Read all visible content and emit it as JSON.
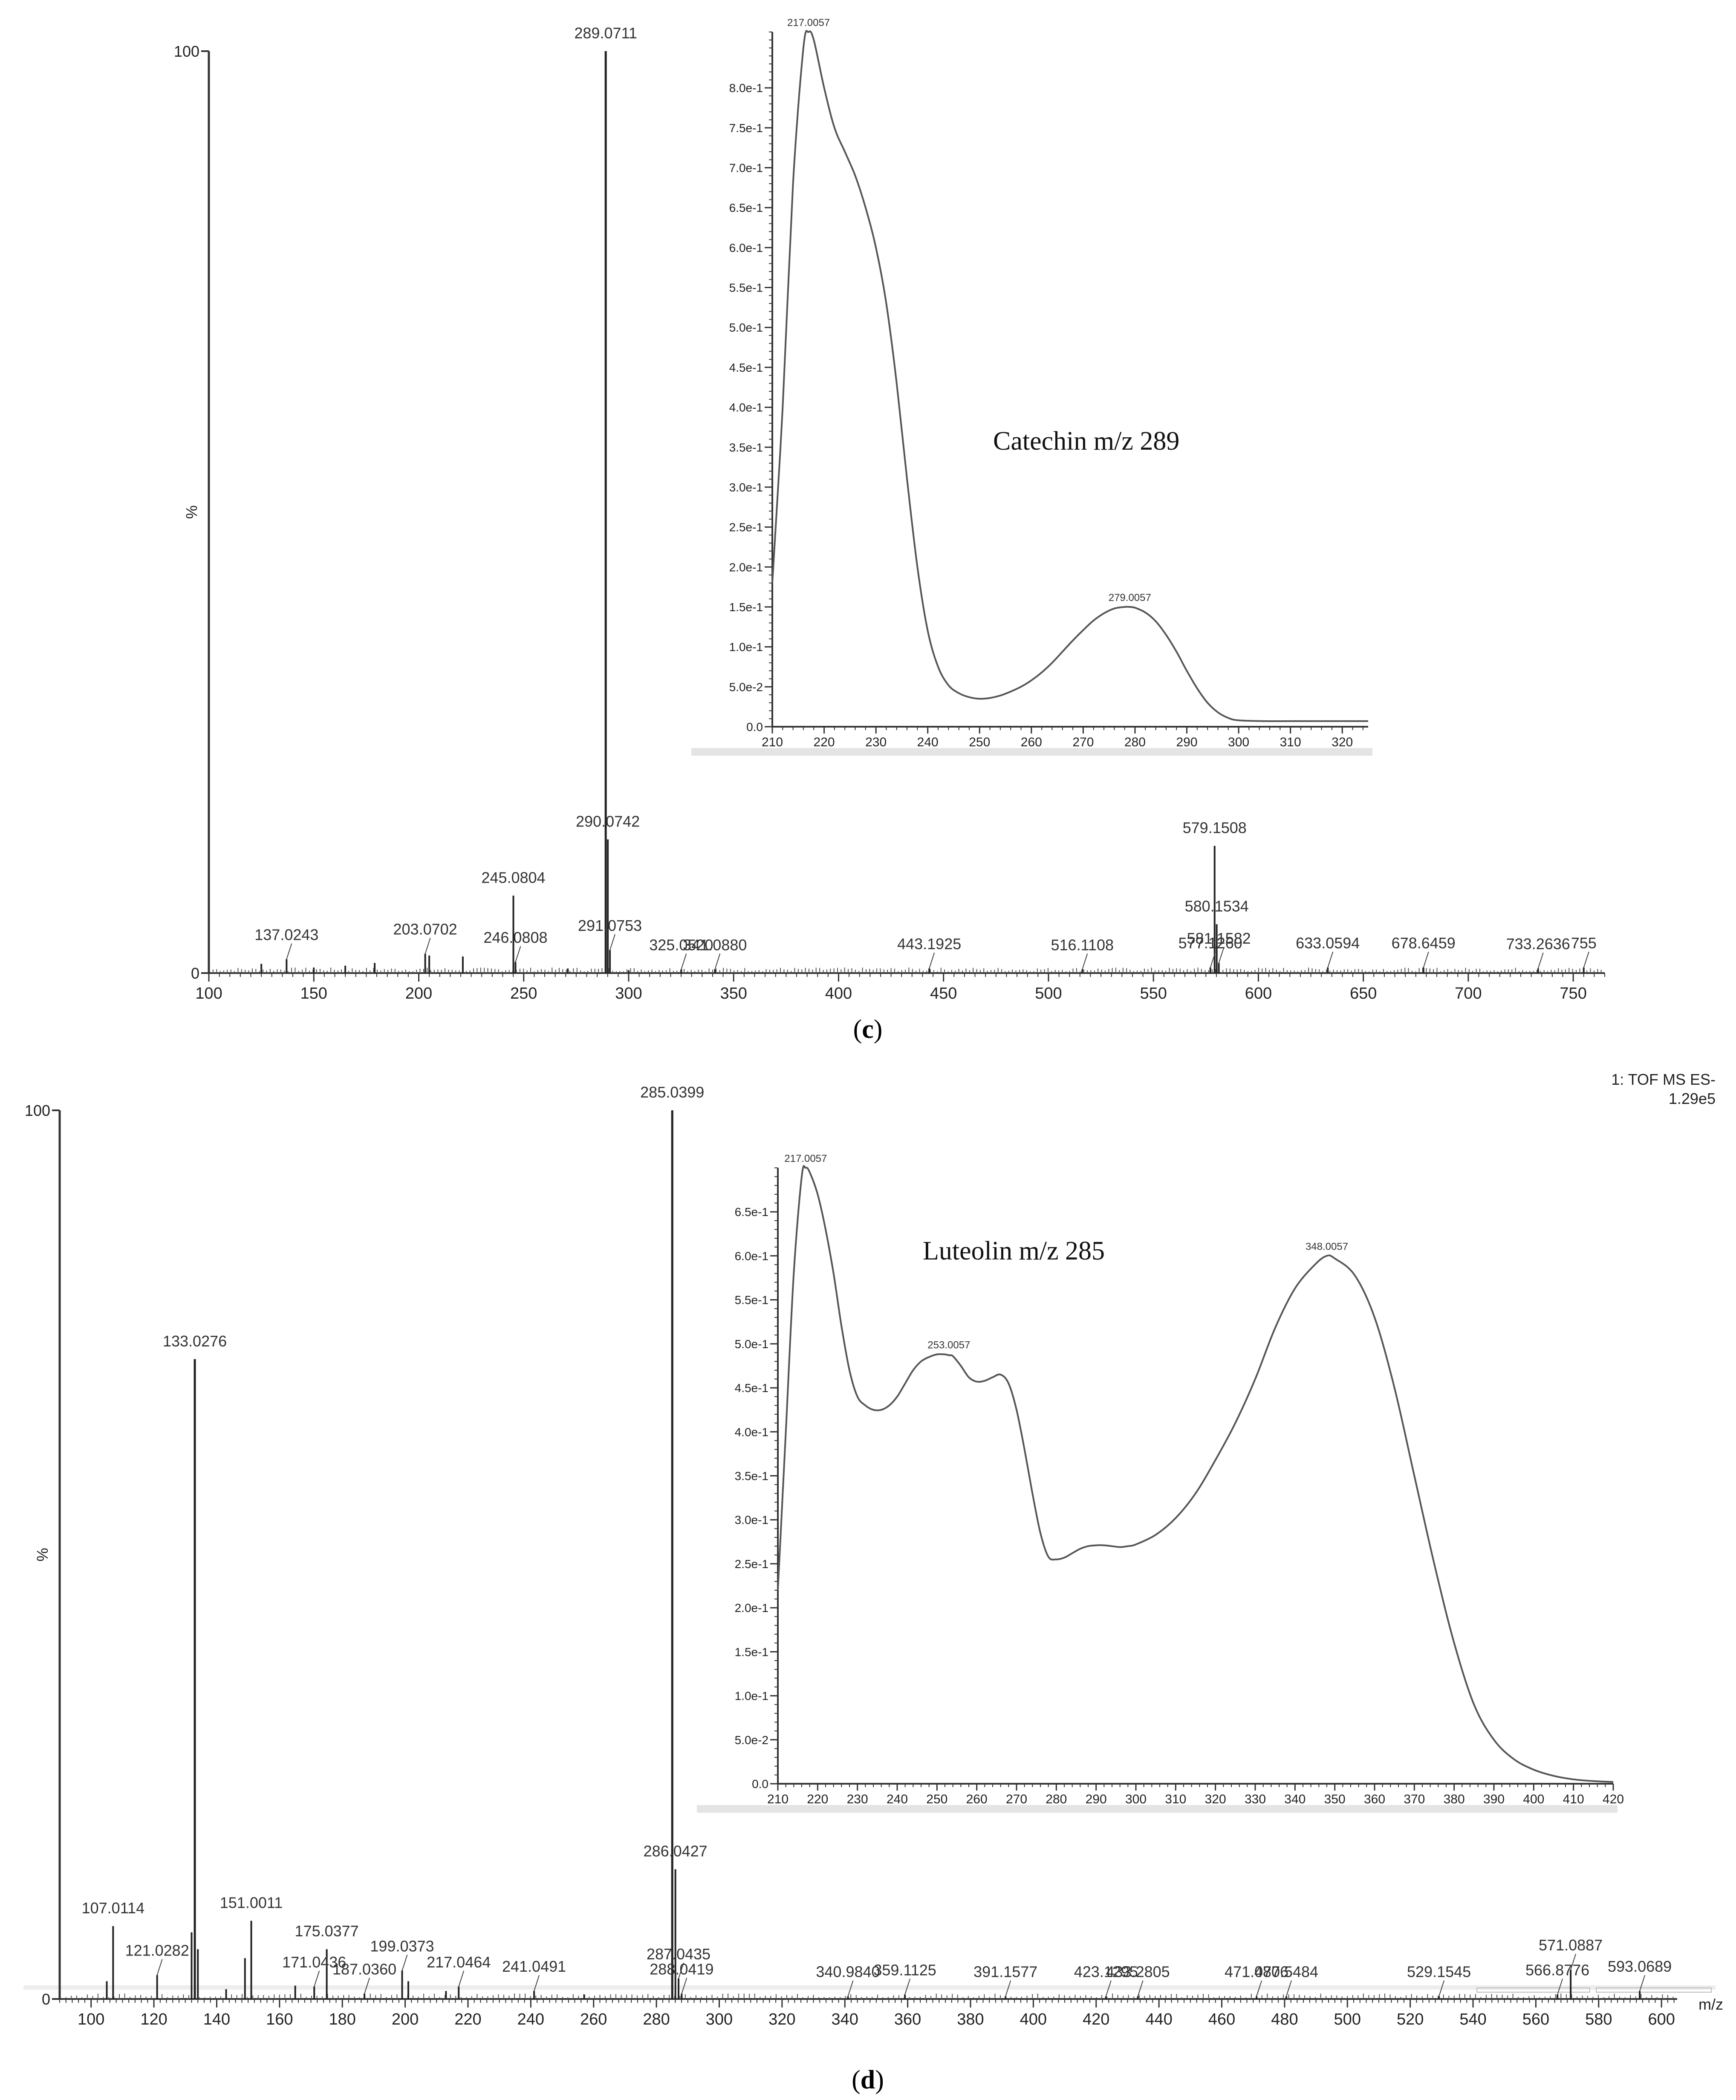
{
  "panels": [
    {
      "label": "c",
      "ms": {
        "type": "bar",
        "ylabel": "%",
        "xlim": [
          100,
          765
        ],
        "ylim": [
          0,
          100
        ],
        "xticks": [
          100,
          150,
          200,
          250,
          300,
          350,
          400,
          450,
          500,
          550,
          600,
          650,
          700,
          750
        ],
        "yticks": [
          0,
          100
        ],
        "peaks": [
          {
            "mz": 289.0711,
            "label": "289.0711",
            "intensity": 100
          },
          {
            "mz": 290.0742,
            "label": "290.0742",
            "intensity": 14.5
          },
          {
            "mz": 579.1508,
            "label": "579.1508",
            "intensity": 13.8
          },
          {
            "mz": 245.0804,
            "label": "245.0804",
            "intensity": 8.4
          },
          {
            "mz": 580.1534,
            "label": "580.1534",
            "intensity": 5.3
          },
          {
            "mz": 291.0753,
            "label": "291.0753",
            "intensity": 2.5
          },
          {
            "mz": 137.0243,
            "label": "137.0243",
            "intensity": 1.5
          },
          {
            "mz": 203.0702,
            "label": "203.0702",
            "intensity": 2.1
          },
          {
            "mz": 246.0808,
            "label": "246.0808",
            "intensity": 1.2
          },
          {
            "mz": 581.1582,
            "label": "581.1582",
            "intensity": 1.1
          },
          {
            "mz": 325.052,
            "label": "325.0520",
            "intensity": 0.4
          },
          {
            "mz": 341.088,
            "label": "341.0880",
            "intensity": 0.4
          },
          {
            "mz": 443.1925,
            "label": "443.1925",
            "intensity": 0.5
          },
          {
            "mz": 516.1108,
            "label": "516.1108",
            "intensity": 0.4
          },
          {
            "mz": 577.126,
            "label": "577.1260",
            "intensity": 0.6
          },
          {
            "mz": 633.0594,
            "label": "633.0594",
            "intensity": 0.6
          },
          {
            "mz": 678.6459,
            "label": "678.6459",
            "intensity": 0.6
          },
          {
            "mz": 733.2636,
            "label": "733.2636",
            "intensity": 0.5
          },
          {
            "mz": 755,
            "label": "755",
            "intensity": 0.6
          },
          {
            "mz": 125,
            "label": "",
            "intensity": 1.0
          },
          {
            "mz": 150,
            "label": "",
            "intensity": 0.6
          },
          {
            "mz": 165,
            "label": "",
            "intensity": 0.8
          },
          {
            "mz": 179,
            "label": "",
            "intensity": 1.1
          },
          {
            "mz": 205,
            "label": "",
            "intensity": 1.9
          },
          {
            "mz": 221,
            "label": "",
            "intensity": 1.8
          },
          {
            "mz": 271,
            "label": "",
            "intensity": 0.5
          },
          {
            "mz": 300,
            "label": "",
            "intensity": 0.3
          }
        ]
      },
      "uv": {
        "type": "line",
        "note": "Catechin m/z 289",
        "xlim": [
          210,
          325
        ],
        "ylim": [
          0,
          0.87
        ],
        "xticks": [
          210,
          220,
          230,
          240,
          250,
          260,
          270,
          280,
          290,
          300,
          310,
          320
        ],
        "yticks": [
          {
            "v": 0.0,
            "label": "0.0"
          },
          {
            "v": 0.05,
            "label": "5.0e-2"
          },
          {
            "v": 0.1,
            "label": "1.0e-1"
          },
          {
            "v": 0.15,
            "label": "1.5e-1"
          },
          {
            "v": 0.2,
            "label": "2.0e-1"
          },
          {
            "v": 0.25,
            "label": "2.5e-1"
          },
          {
            "v": 0.3,
            "label": "3.0e-1"
          },
          {
            "v": 0.35,
            "label": "3.5e-1"
          },
          {
            "v": 0.4,
            "label": "4.0e-1"
          },
          {
            "v": 0.45,
            "label": "4.5e-1"
          },
          {
            "v": 0.5,
            "label": "5.0e-1"
          },
          {
            "v": 0.55,
            "label": "5.5e-1"
          },
          {
            "v": 0.6,
            "label": "6.0e-1"
          },
          {
            "v": 0.65,
            "label": "6.5e-1"
          },
          {
            "v": 0.7,
            "label": "7.0e-1"
          },
          {
            "v": 0.75,
            "label": "7.5e-1"
          },
          {
            "v": 0.8,
            "label": "8.0e-1"
          }
        ],
        "x": [
          210,
          212,
          214,
          216,
          217,
          218,
          220,
          222,
          224,
          226,
          228,
          230,
          232,
          234,
          236,
          238,
          240,
          242,
          244,
          246,
          248,
          250,
          252,
          254,
          256,
          258,
          260,
          262,
          264,
          266,
          268,
          270,
          272,
          274,
          276,
          278,
          279,
          280,
          282,
          284,
          286,
          288,
          290,
          292,
          294,
          296,
          298,
          300,
          305,
          310,
          315,
          320,
          325
        ],
        "y": [
          0.18,
          0.4,
          0.68,
          0.85,
          0.87,
          0.86,
          0.8,
          0.75,
          0.72,
          0.69,
          0.65,
          0.6,
          0.53,
          0.43,
          0.31,
          0.2,
          0.12,
          0.075,
          0.052,
          0.042,
          0.037,
          0.035,
          0.036,
          0.039,
          0.044,
          0.05,
          0.058,
          0.068,
          0.08,
          0.094,
          0.108,
          0.121,
          0.133,
          0.142,
          0.148,
          0.15,
          0.15,
          0.149,
          0.143,
          0.132,
          0.115,
          0.094,
          0.07,
          0.048,
          0.03,
          0.018,
          0.011,
          0.008,
          0.007,
          0.007,
          0.007,
          0.007,
          0.007
        ],
        "annotations": [
          {
            "x": 217,
            "y": 0.87,
            "label": "217.0057"
          },
          {
            "x": 279,
            "y": 0.15,
            "label": "279.0057"
          }
        ]
      }
    },
    {
      "label": "d",
      "header": {
        "line1": "1: TOF MS ES-",
        "line2": "1.29e5"
      },
      "ms": {
        "type": "bar",
        "ylabel": "%",
        "xlabel": "m/z",
        "xlim": [
          90,
          605
        ],
        "ylim": [
          0,
          100
        ],
        "xticks": [
          100,
          120,
          140,
          160,
          180,
          200,
          220,
          240,
          260,
          280,
          300,
          320,
          340,
          360,
          380,
          400,
          420,
          440,
          460,
          480,
          500,
          520,
          540,
          560,
          580,
          600
        ],
        "yticks": [
          0,
          100
        ],
        "peaks": [
          {
            "mz": 285.0399,
            "label": "285.0399",
            "intensity": 100
          },
          {
            "mz": 133.0276,
            "label": "133.0276",
            "intensity": 72
          },
          {
            "mz": 286.0427,
            "label": "286.0427",
            "intensity": 14.6
          },
          {
            "mz": 151.0011,
            "label": "151.0011",
            "intensity": 8.8
          },
          {
            "mz": 107.0114,
            "label": "107.0114",
            "intensity": 8.2
          },
          {
            "mz": 175.0377,
            "label": "175.0377",
            "intensity": 5.6
          },
          {
            "mz": 571.0887,
            "label": "571.0887",
            "intensity": 3.3
          },
          {
            "mz": 199.0373,
            "label": "199.0373",
            "intensity": 3.2
          },
          {
            "mz": 121.0282,
            "label": "121.0282",
            "intensity": 2.7
          },
          {
            "mz": 171.0436,
            "label": "171.0436",
            "intensity": 1.4
          },
          {
            "mz": 287.0435,
            "label": "287.0435",
            "intensity": 2.3
          },
          {
            "mz": 217.0464,
            "label": "217.0464",
            "intensity": 1.4
          },
          {
            "mz": 241.0491,
            "label": "241.0491",
            "intensity": 0.9
          },
          {
            "mz": 187.036,
            "label": "187.0360",
            "intensity": 0.6
          },
          {
            "mz": 288.0419,
            "label": "288.0419",
            "intensity": 0.6
          },
          {
            "mz": 593.0689,
            "label": "593.0689",
            "intensity": 0.9
          },
          {
            "mz": 340.984,
            "label": "340.9840",
            "intensity": 0.3
          },
          {
            "mz": 359.1125,
            "label": "359.1125",
            "intensity": 0.5
          },
          {
            "mz": 391.1577,
            "label": "391.1577",
            "intensity": 0.3
          },
          {
            "mz": 423.1295,
            "label": "423.1295",
            "intensity": 0.3
          },
          {
            "mz": 433.2805,
            "label": "433.2805",
            "intensity": 0.3
          },
          {
            "mz": 471.0776,
            "label": "471.0776",
            "intensity": 0.3
          },
          {
            "mz": 480.5484,
            "label": "480.5484",
            "intensity": 0.3
          },
          {
            "mz": 529.1545,
            "label": "529.1545",
            "intensity": 0.3
          },
          {
            "mz": 566.8776,
            "label": "566.8776",
            "intensity": 0.5
          },
          {
            "mz": 105,
            "label": "",
            "intensity": 2.0
          },
          {
            "mz": 132,
            "label": "",
            "intensity": 7.5
          },
          {
            "mz": 134,
            "label": "",
            "intensity": 5.6
          },
          {
            "mz": 149,
            "label": "",
            "intensity": 4.6
          },
          {
            "mz": 143,
            "label": "",
            "intensity": 1.1
          },
          {
            "mz": 165,
            "label": "",
            "intensity": 1.5
          },
          {
            "mz": 201,
            "label": "",
            "intensity": 2.0
          },
          {
            "mz": 213,
            "label": "",
            "intensity": 0.9
          },
          {
            "mz": 257,
            "label": "",
            "intensity": 0.5
          }
        ]
      },
      "uv": {
        "type": "line",
        "note": "Luteolin m/z 285",
        "xlim": [
          210,
          420
        ],
        "ylim": [
          0,
          0.7
        ],
        "xticks": [
          210,
          220,
          230,
          240,
          250,
          260,
          270,
          280,
          290,
          300,
          310,
          320,
          330,
          340,
          350,
          360,
          370,
          380,
          390,
          400,
          410,
          420
        ],
        "yticks": [
          {
            "v": 0.0,
            "label": "0.0"
          },
          {
            "v": 0.05,
            "label": "5.0e-2"
          },
          {
            "v": 0.1,
            "label": "1.0e-1"
          },
          {
            "v": 0.15,
            "label": "1.5e-1"
          },
          {
            "v": 0.2,
            "label": "2.0e-1"
          },
          {
            "v": 0.25,
            "label": "2.5e-1"
          },
          {
            "v": 0.3,
            "label": "3.0e-1"
          },
          {
            "v": 0.35,
            "label": "3.5e-1"
          },
          {
            "v": 0.4,
            "label": "4.0e-1"
          },
          {
            "v": 0.45,
            "label": "4.5e-1"
          },
          {
            "v": 0.5,
            "label": "5.0e-1"
          },
          {
            "v": 0.55,
            "label": "5.5e-1"
          },
          {
            "v": 0.6,
            "label": "6.0e-1"
          },
          {
            "v": 0.65,
            "label": "6.5e-1"
          }
        ],
        "x": [
          210,
          212,
          214,
          216,
          217,
          218,
          220,
          222,
          224,
          226,
          228,
          230,
          232,
          234,
          236,
          238,
          240,
          242,
          244,
          246,
          248,
          250,
          252,
          253,
          254,
          256,
          258,
          260,
          262,
          264,
          266,
          268,
          270,
          272,
          274,
          276,
          278,
          280,
          282,
          284,
          286,
          288,
          290,
          292,
          294,
          296,
          298,
          300,
          305,
          310,
          315,
          320,
          325,
          330,
          335,
          340,
          345,
          348,
          350,
          355,
          360,
          365,
          370,
          375,
          380,
          385,
          390,
          395,
          400,
          405,
          410,
          415,
          420
        ],
        "y": [
          0.22,
          0.4,
          0.58,
          0.69,
          0.7,
          0.695,
          0.67,
          0.63,
          0.58,
          0.52,
          0.47,
          0.44,
          0.43,
          0.425,
          0.425,
          0.43,
          0.44,
          0.455,
          0.47,
          0.48,
          0.485,
          0.488,
          0.488,
          0.487,
          0.486,
          0.475,
          0.462,
          0.457,
          0.458,
          0.462,
          0.465,
          0.455,
          0.425,
          0.38,
          0.33,
          0.285,
          0.258,
          0.255,
          0.257,
          0.262,
          0.267,
          0.27,
          0.271,
          0.271,
          0.27,
          0.269,
          0.27,
          0.272,
          0.283,
          0.302,
          0.33,
          0.368,
          0.41,
          0.46,
          0.518,
          0.563,
          0.59,
          0.6,
          0.597,
          0.578,
          0.53,
          0.45,
          0.35,
          0.25,
          0.16,
          0.09,
          0.05,
          0.028,
          0.016,
          0.009,
          0.005,
          0.003,
          0.002
        ],
        "annotations": [
          {
            "x": 217,
            "y": 0.7,
            "label": "217.0057"
          },
          {
            "x": 253,
            "y": 0.488,
            "label": "253.0057"
          },
          {
            "x": 348,
            "y": 0.6,
            "label": "348.0057"
          }
        ]
      }
    }
  ]
}
